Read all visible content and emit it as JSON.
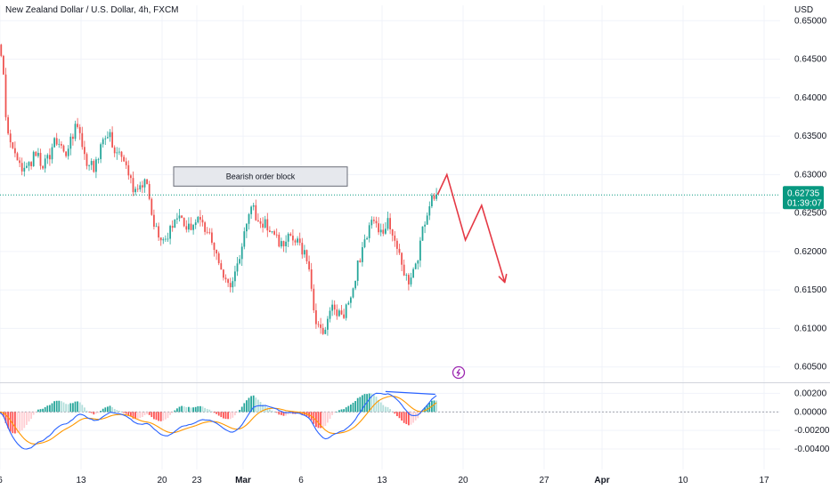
{
  "header": {
    "title": "New Zealand Dollar / U.S. Dollar, 4h, FXCM",
    "currency": "USD"
  },
  "colors": {
    "up": "#26a69a",
    "down": "#ef5350",
    "projection": "#e53945",
    "macd": "#2962ff",
    "signal": "#ff9800",
    "price_tag": "#089981",
    "hist_pos_strong": "#26a69a",
    "hist_pos_weak": "#b2dfdb",
    "hist_neg_strong": "#ff5252",
    "hist_neg_weak": "#ffcdd2",
    "grid": "#f0f3fa",
    "divergence": "#2962ff",
    "event_marker": "#9c27b0"
  },
  "icons": {
    "event_marker": "lightning-icon"
  },
  "price_tag": {
    "price": "0.62735",
    "countdown": "01:39:07"
  },
  "annotation": {
    "label": "Bearish order block",
    "price_low": 0.6285,
    "price_high": 0.631,
    "day_start": 15.0,
    "day_end": 30.0
  },
  "chart_data": [
    {
      "type": "candlestick",
      "title": "New Zealand Dollar / U.S. Dollar, 4h, FXCM",
      "y_unit": "USD",
      "ylim": [
        0.603,
        0.652
      ],
      "y_ticks": [
        "0.65000",
        "0.64500",
        "0.64000",
        "0.63500",
        "0.63000",
        "0.62500",
        "0.62000",
        "0.61500",
        "0.61000",
        "0.60500"
      ],
      "x_range_days": [
        0,
        45.5
      ],
      "x_ticks": [
        {
          "label": "6",
          "day": 0
        },
        {
          "label": "13",
          "day": 7
        },
        {
          "label": "20",
          "day": 14
        },
        {
          "label": "23",
          "day": 17
        },
        {
          "label": "Mar",
          "day": 21
        },
        {
          "label": "6",
          "day": 26
        },
        {
          "label": "13",
          "day": 33
        },
        {
          "label": "20",
          "day": 40
        },
        {
          "label": "27",
          "day": 47
        },
        {
          "label": "Apr",
          "day": 52
        },
        {
          "label": "10",
          "day": 59
        },
        {
          "label": "17",
          "day": 66
        }
      ],
      "anchors": [
        [
          -0.5,
          0.647
        ],
        [
          -0.2,
          0.6478
        ],
        [
          0.4,
          0.645
        ],
        [
          0.8,
          0.636
        ],
        [
          1.6,
          0.632
        ],
        [
          2.4,
          0.63
        ],
        [
          3.2,
          0.633
        ],
        [
          4.0,
          0.631
        ],
        [
          5.0,
          0.6345
        ],
        [
          6.0,
          0.6325
        ],
        [
          6.8,
          0.637
        ],
        [
          7.6,
          0.632
        ],
        [
          8.4,
          0.631
        ],
        [
          9.4,
          0.636
        ],
        [
          10.2,
          0.633
        ],
        [
          11.0,
          0.632
        ],
        [
          11.8,
          0.628
        ],
        [
          12.8,
          0.629
        ],
        [
          13.6,
          0.623
        ],
        [
          14.4,
          0.621
        ],
        [
          15.0,
          0.623
        ],
        [
          15.8,
          0.6245
        ],
        [
          16.6,
          0.623
        ],
        [
          17.4,
          0.624
        ],
        [
          18.4,
          0.6225
        ],
        [
          19.2,
          0.6175
        ],
        [
          20.2,
          0.615
        ],
        [
          21.0,
          0.62
        ],
        [
          21.8,
          0.626
        ],
        [
          22.6,
          0.624
        ],
        [
          23.6,
          0.623
        ],
        [
          24.4,
          0.621
        ],
        [
          25.2,
          0.622
        ],
        [
          26.2,
          0.6205
        ],
        [
          26.8,
          0.619
        ],
        [
          27.4,
          0.6105
        ],
        [
          28.2,
          0.61
        ],
        [
          29.0,
          0.613
        ],
        [
          29.8,
          0.611
        ],
        [
          30.6,
          0.615
        ],
        [
          31.4,
          0.62
        ],
        [
          32.2,
          0.624
        ],
        [
          33.0,
          0.6225
        ],
        [
          33.8,
          0.624
        ],
        [
          34.6,
          0.62
        ],
        [
          35.4,
          0.616
        ],
        [
          36.2,
          0.6185
        ],
        [
          37.0,
          0.625
        ],
        [
          37.8,
          0.6274
        ]
      ],
      "candle_step_days": 0.2,
      "projection_path": [
        [
          37.8,
          0.6274
        ],
        [
          38.6,
          0.63
        ],
        [
          40.2,
          0.6215
        ],
        [
          41.6,
          0.626
        ],
        [
          43.6,
          0.616
        ]
      ]
    },
    {
      "type": "macd",
      "ylim": [
        -0.0062,
        0.003
      ],
      "y_ticks": [
        "0.00200",
        "0.00000",
        "-0.00200",
        "-0.00400"
      ],
      "divergence_line": {
        "x": [
          33.3,
          37.6
        ],
        "y": [
          0.0022,
          0.0019
        ]
      }
    }
  ]
}
